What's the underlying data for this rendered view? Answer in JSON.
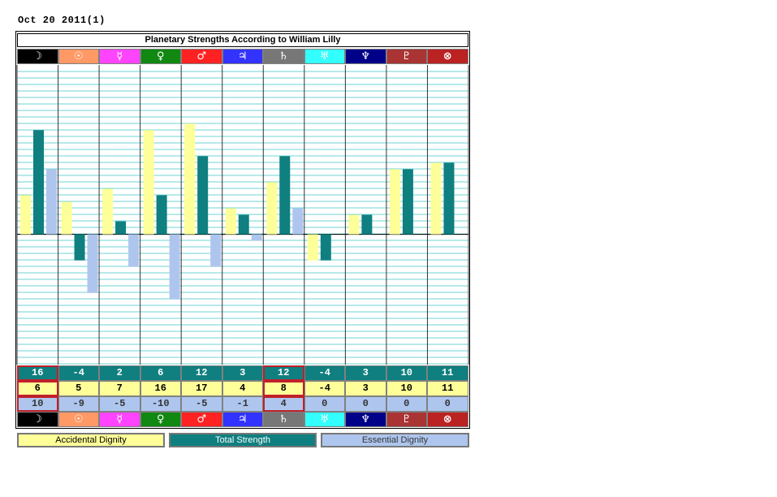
{
  "date_label": "Oct 20 2011(1)",
  "title": "Planetary Strengths According to William Lilly",
  "planets": [
    {
      "glyph": "☽",
      "bg": "#000000"
    },
    {
      "glyph": "☉",
      "bg": "#ff9966"
    },
    {
      "glyph": "☿",
      "bg": "#ff44ff"
    },
    {
      "glyph": "♀",
      "bg": "#118811"
    },
    {
      "glyph": "♂",
      "bg": "#ff2222"
    },
    {
      "glyph": "♃",
      "bg": "#3333ff"
    },
    {
      "glyph": "♄",
      "bg": "#777777"
    },
    {
      "glyph": "♅",
      "bg": "#33ffff"
    },
    {
      "glyph": "♆",
      "bg": "#000088"
    },
    {
      "glyph": "♇",
      "bg": "#aa3333"
    },
    {
      "glyph": "⊗",
      "bg": "#bb2222"
    }
  ],
  "chart_data": {
    "type": "bar",
    "title": "Planetary Strengths According to William Lilly",
    "categories": [
      "☽",
      "☉",
      "☿",
      "♀",
      "♂",
      "♃",
      "♄",
      "♅",
      "♆",
      "♇",
      "⊗"
    ],
    "series": [
      {
        "name": "Accidental Dignity",
        "color": "#ffff99",
        "values": [
          6,
          5,
          7,
          16,
          17,
          4,
          8,
          -4,
          3,
          10,
          11
        ]
      },
      {
        "name": "Total Strength",
        "color": "#0f7f7f",
        "values": [
          16,
          -4,
          2,
          6,
          12,
          3,
          12,
          -4,
          3,
          10,
          11
        ]
      },
      {
        "name": "Essential Dignity",
        "color": "#aec6ee",
        "values": [
          10,
          -9,
          -5,
          -10,
          -5,
          -1,
          4,
          0,
          0,
          0,
          0
        ]
      }
    ],
    "ylim": [
      -20,
      26
    ],
    "grid": true,
    "legend": "bottom"
  },
  "rows": {
    "total_strength": [
      "16",
      "-4",
      "2",
      "6",
      "12",
      "3",
      "12",
      "-4",
      "3",
      "10",
      "11"
    ],
    "accidental_dignity": [
      "6",
      "5",
      "7",
      "16",
      "17",
      "4",
      "8",
      "-4",
      "3",
      "10",
      "11"
    ],
    "essential_dignity": [
      "10",
      "-9",
      "-5",
      "-10",
      "-5",
      "-1",
      "4",
      "0",
      "0",
      "0",
      "0"
    ]
  },
  "legend": {
    "accidental": "Accidental Dignity",
    "total": "Total Strength",
    "essential": "Essential Dignity"
  }
}
